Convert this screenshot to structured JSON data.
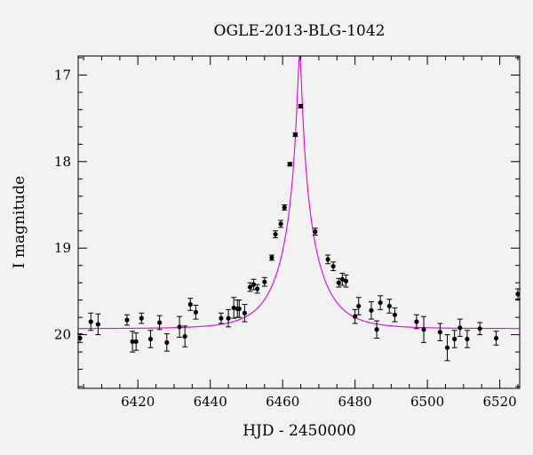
{
  "chart_data": {
    "type": "scatter",
    "title": "OGLE-2013-BLG-1042",
    "xlabel": "HJD - 2450000",
    "ylabel": "I magnitude",
    "xlim": [
      6403.5,
      6525.5
    ],
    "ylim": [
      20.62,
      16.78
    ],
    "y_inverted": true,
    "grid": false,
    "xticks": [
      6420,
      6440,
      6460,
      6480,
      6500,
      6520
    ],
    "yticks": [
      17,
      18,
      19,
      20
    ],
    "colors": {
      "points": "#000000",
      "model": "#e600e6",
      "background": "#f2f2f2"
    },
    "series": [
      {
        "type": "scatter_errorbar",
        "x": [
          6404,
          6407,
          6409,
          6417,
          6418.5,
          6419.5,
          6421,
          6423.5,
          6426,
          6428,
          6431.5,
          6433,
          6434.5,
          6436,
          6443,
          6445,
          6446.5,
          6447.5,
          6448,
          6449.5,
          6451,
          6452,
          6453,
          6455,
          6457,
          6458,
          6459.5,
          6460.5,
          6462,
          6463.5,
          6465,
          6469,
          6472.5,
          6474,
          6475.5,
          6476.5,
          6477.5,
          6480,
          6481,
          6484.5,
          6486,
          6487,
          6489.5,
          6491,
          6497,
          6499,
          6503.5,
          6505.5,
          6507.5,
          6509,
          6511,
          6514.5,
          6519,
          6525
        ],
        "y": [
          20.04,
          19.85,
          19.88,
          19.83,
          20.08,
          20.08,
          19.81,
          20.05,
          19.86,
          20.09,
          19.91,
          20.02,
          19.65,
          19.74,
          19.81,
          19.81,
          19.69,
          19.7,
          19.7,
          19.75,
          19.45,
          19.42,
          19.47,
          19.39,
          19.11,
          18.84,
          18.72,
          18.53,
          18.03,
          17.69,
          17.36,
          18.81,
          19.13,
          19.21,
          19.4,
          19.36,
          19.38,
          19.79,
          19.67,
          19.72,
          19.94,
          19.63,
          19.67,
          19.77,
          19.85,
          19.94,
          19.97,
          20.15,
          20.05,
          19.92,
          20.05,
          19.93,
          20.04,
          19.53
        ],
        "yerr": [
          0.05,
          0.1,
          0.12,
          0.06,
          0.12,
          0.1,
          0.06,
          0.1,
          0.08,
          0.1,
          0.12,
          0.12,
          0.07,
          0.08,
          0.06,
          0.1,
          0.12,
          0.1,
          0.1,
          0.1,
          0.05,
          0.06,
          0.05,
          0.05,
          0.03,
          0.04,
          0.04,
          0.03,
          0.02,
          0.02,
          0.02,
          0.04,
          0.05,
          0.05,
          0.05,
          0.07,
          0.07,
          0.08,
          0.1,
          0.1,
          0.1,
          0.08,
          0.08,
          0.08,
          0.08,
          0.15,
          0.1,
          0.15,
          0.1,
          0.1,
          0.1,
          0.07,
          0.08,
          0.06
        ]
      },
      {
        "type": "line",
        "model": "microlensing_point_lens",
        "t0": 6464.7,
        "u0": 0.055,
        "tE": 10,
        "baseline_mag": 19.93
      }
    ]
  }
}
